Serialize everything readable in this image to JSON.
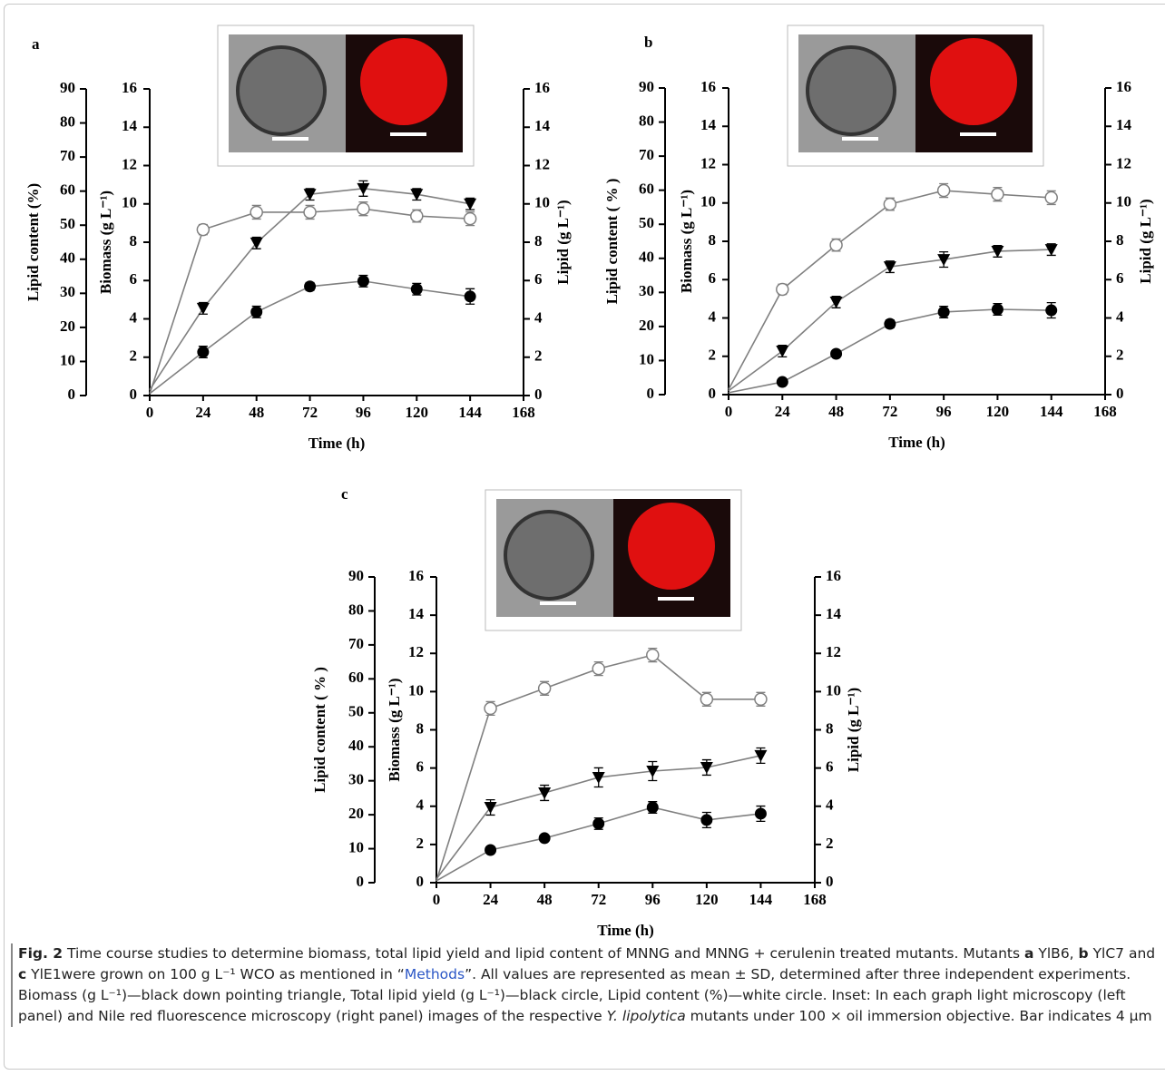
{
  "chart_data": [
    {
      "type": "line",
      "panel": "a",
      "line_color": "#808080",
      "x": [
        0,
        24,
        48,
        72,
        96,
        120,
        144
      ],
      "xlim": [
        0,
        168
      ],
      "xticks": [
        0,
        24,
        48,
        72,
        96,
        120,
        144,
        168
      ],
      "xlabel": "Time (h)",
      "ylim": [
        0,
        16
      ],
      "yticks": [
        0,
        2,
        4,
        6,
        8,
        10,
        12,
        14,
        16
      ],
      "ylabel": "Biomass (g L⁻¹)",
      "y2lim": [
        0,
        16
      ],
      "y2ticks": [
        0,
        2,
        4,
        6,
        8,
        10,
        12,
        14,
        16
      ],
      "y2label": "Lipid (g L⁻¹)",
      "y3lim": [
        0,
        90
      ],
      "y3ticks": [
        0,
        10,
        20,
        30,
        40,
        50,
        60,
        70,
        80,
        90
      ],
      "y3label": "Lipid content (%)",
      "series": [
        {
          "marker": "triangle",
          "color": "#000000",
          "values": [
            0.3,
            4.55,
            7.96,
            10.5,
            10.8,
            10.5,
            10.0
          ],
          "errors": [
            null,
            0.3,
            0.3,
            0.3,
            0.4,
            0.3,
            0.3
          ]
        },
        {
          "marker": "circle",
          "axis": "y2",
          "color": "#000000",
          "values": [
            0.1,
            2.27,
            4.36,
            5.69,
            5.97,
            5.55,
            5.17
          ],
          "errors": [
            null,
            0.3,
            0.3,
            0.2,
            0.3,
            0.3,
            0.4
          ]
        },
        {
          "marker": "open-circle",
          "axis": "y3",
          "color": "#808080",
          "values": [
            0.5,
            48.7,
            53.8,
            53.8,
            54.8,
            52.7,
            51.9
          ],
          "errors": [
            null,
            1.5,
            2,
            2,
            2,
            1.8,
            2
          ]
        }
      ]
    },
    {
      "type": "line",
      "panel": "b",
      "line_color": "#808080",
      "x": [
        0,
        24,
        48,
        72,
        96,
        120,
        144
      ],
      "xlim": [
        0,
        168
      ],
      "xticks": [
        0,
        24,
        48,
        72,
        96,
        120,
        144,
        168
      ],
      "xlabel": "Time (h)",
      "ylim": [
        0,
        16
      ],
      "yticks": [
        0,
        2,
        4,
        6,
        8,
        10,
        12,
        14,
        16
      ],
      "ylabel": "Biomass (g L⁻¹)",
      "y2lim": [
        0,
        16
      ],
      "y2ticks": [
        0,
        2,
        4,
        6,
        8,
        10,
        12,
        14,
        16
      ],
      "y2label": "Lipid (g L⁻¹)",
      "y3lim": [
        0,
        90
      ],
      "y3ticks": [
        0,
        10,
        20,
        30,
        40,
        50,
        60,
        70,
        80,
        90
      ],
      "y3label": "Lipid content ( % )",
      "series": [
        {
          "marker": "triangle",
          "color": "#000000",
          "values": [
            0.2,
            2.27,
            4.83,
            6.67,
            7.05,
            7.48,
            7.57
          ],
          "errors": [
            null,
            0.3,
            0.3,
            0.3,
            0.4,
            0.3,
            0.3
          ]
        },
        {
          "marker": "circle",
          "axis": "y2",
          "color": "#000000",
          "values": [
            0.1,
            0.66,
            2.13,
            3.69,
            4.31,
            4.45,
            4.4
          ],
          "errors": [
            null,
            0.1,
            0.1,
            0.2,
            0.3,
            0.3,
            0.4
          ]
        },
        {
          "marker": "open-circle",
          "axis": "y3",
          "color": "#808080",
          "values": [
            1.5,
            30.9,
            43.9,
            55.9,
            59.9,
            58.8,
            57.8
          ],
          "errors": [
            null,
            1.5,
            1.8,
            1.8,
            2,
            2,
            2
          ]
        }
      ]
    },
    {
      "type": "line",
      "panel": "c",
      "line_color": "#808080",
      "x": [
        0,
        24,
        48,
        72,
        96,
        120,
        144
      ],
      "xlim": [
        0,
        168
      ],
      "xticks": [
        0,
        24,
        48,
        72,
        96,
        120,
        144,
        168
      ],
      "xlabel": "Time (h)",
      "ylim": [
        0,
        16
      ],
      "yticks": [
        0,
        2,
        4,
        6,
        8,
        10,
        12,
        14,
        16
      ],
      "ylabel": "Biomass (g L⁻¹)",
      "y2lim": [
        0,
        16
      ],
      "y2ticks": [
        0,
        2,
        4,
        6,
        8,
        10,
        12,
        14,
        16
      ],
      "y2label": "Lipid (g L⁻¹)",
      "y3lim": [
        0,
        90
      ],
      "y3ticks": [
        0,
        10,
        20,
        30,
        40,
        50,
        60,
        70,
        80,
        90
      ],
      "y3label": "Lipid content ( % )",
      "series": [
        {
          "marker": "triangle",
          "color": "#000000",
          "values": [
            0.2,
            3.94,
            4.7,
            5.51,
            5.84,
            6.03,
            6.65
          ],
          "errors": [
            null,
            0.4,
            0.4,
            0.5,
            0.5,
            0.4,
            0.4
          ]
        },
        {
          "marker": "circle",
          "axis": "y2",
          "color": "#000000",
          "values": [
            0.1,
            1.71,
            2.33,
            3.09,
            3.94,
            3.28,
            3.61
          ],
          "errors": [
            null,
            0.1,
            0.1,
            0.3,
            0.3,
            0.4,
            0.4
          ]
        },
        {
          "marker": "open-circle",
          "axis": "y3",
          "color": "#808080",
          "values": [
            0.5,
            51.3,
            57.2,
            63.0,
            67.0,
            54.0,
            54.0
          ],
          "errors": [
            null,
            2,
            2,
            2,
            2,
            2,
            2
          ]
        }
      ]
    }
  ],
  "caption": {
    "segments": [
      "Fig. 2",
      "  Time course studies to determine biomass, total lipid yield and lipid content of MNNG and MNNG + cerulenin treated mutants. Mutants ",
      "a",
      " YlB6, ",
      "b",
      " YlC7 and ",
      "c",
      " YlE1were grown on 100 g L⁻¹ WCO as mentioned in “",
      "Methods",
      "”. All values are represented as mean ± SD, determined after three independent experiments. Biomass (g L⁻¹)—black down pointing triangle, Total lipid yield (g L⁻¹)—black circle, Lipid content (%)—white circle. Inset: In each graph light microscopy (left panel) and Nile red fluorescence microscopy (right panel) images of the respective ",
      "Y. lipolytica",
      " mutants under 100 × oil immersion objective. Bar indicates 4 μm"
    ]
  }
}
